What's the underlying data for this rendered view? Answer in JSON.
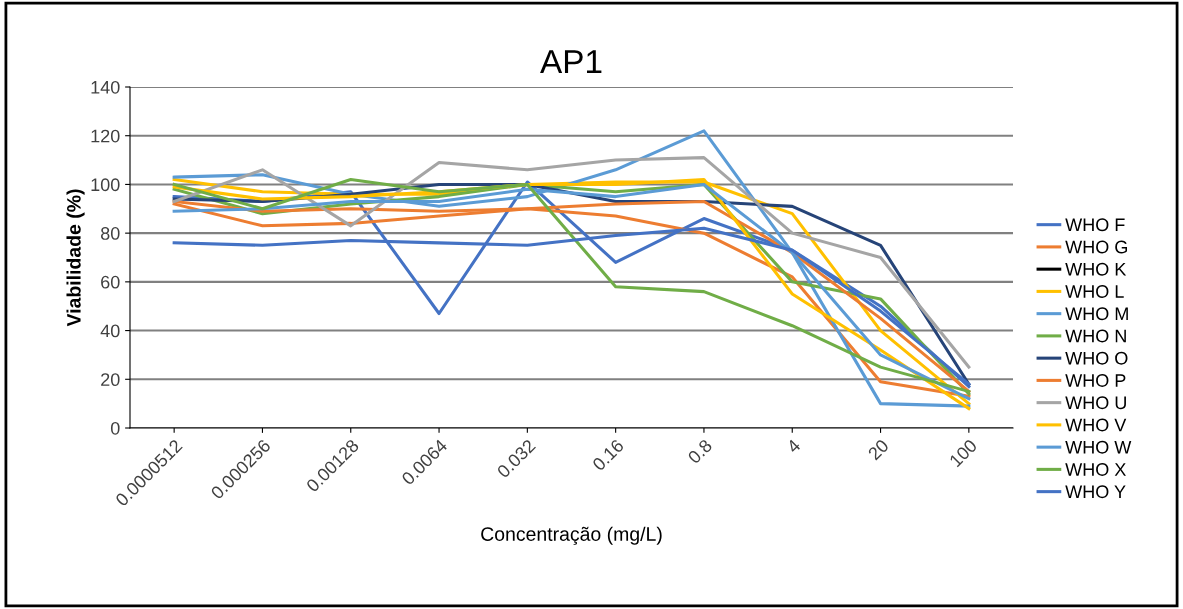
{
  "chart_data": {
    "type": "line",
    "title": "AP1",
    "xlabel": "Concentração (mg/L)",
    "ylabel": "Viabilidade (%)",
    "categories": [
      "0.0000512",
      "0.000256",
      "0.00128",
      "0.0064",
      "0.032",
      "0.16",
      "0.8",
      "4",
      "20",
      "100"
    ],
    "ylim": [
      0,
      140
    ],
    "yticks": [
      0,
      20,
      40,
      60,
      80,
      100,
      120,
      140
    ],
    "grid": "y",
    "legend": "right",
    "marker": "none",
    "line_style": "solid",
    "series": [
      {
        "name": "WHO F",
        "color": "#4472c4",
        "values": [
          95,
          93,
          97,
          47,
          101,
          68,
          86,
          73,
          50,
          17
        ]
      },
      {
        "name": "WHO G",
        "color": "#ed7d31",
        "values": [
          92,
          83,
          84,
          87,
          90,
          87,
          80,
          62,
          19,
          13
        ]
      },
      {
        "name": "WHO K",
        "color": "#000000",
        "values": [
          null,
          null,
          null,
          null,
          null,
          null,
          null,
          null,
          null,
          null
        ]
      },
      {
        "name": "WHO L",
        "color": "#ffc000",
        "values": [
          102,
          97,
          96,
          96,
          100,
          101,
          101,
          88,
          40,
          10
        ]
      },
      {
        "name": "WHO M",
        "color": "#5b9bd5",
        "values": [
          103,
          104,
          96,
          91,
          95,
          106,
          122,
          72,
          10,
          9
        ]
      },
      {
        "name": "WHO N",
        "color": "#70ad47",
        "values": [
          98,
          88,
          92,
          95,
          100,
          97,
          100,
          60,
          53,
          14
        ]
      },
      {
        "name": "WHO O",
        "color": "#264478",
        "values": [
          94,
          93,
          96,
          100,
          100,
          93,
          93,
          91,
          75,
          18
        ]
      },
      {
        "name": "WHO P",
        "color": "#ed7d31",
        "values": [
          93,
          89,
          90,
          89,
          90,
          92,
          93,
          72,
          45,
          15
        ]
      },
      {
        "name": "WHO U",
        "color": "#a5a5a5",
        "values": [
          93,
          106,
          83,
          109,
          106,
          110,
          111,
          80,
          70,
          25
        ]
      },
      {
        "name": "WHO V",
        "color": "#ffc000",
        "values": [
          99,
          94,
          95,
          97,
          100,
          100,
          102,
          55,
          32,
          8
        ]
      },
      {
        "name": "WHO W",
        "color": "#5b9bd5",
        "values": [
          89,
          90,
          93,
          93,
          98,
          95,
          100,
          72,
          30,
          12
        ]
      },
      {
        "name": "WHO X",
        "color": "#70ad47",
        "values": [
          100,
          90,
          102,
          97,
          100,
          58,
          56,
          42,
          25,
          15
        ]
      },
      {
        "name": "WHO Y",
        "color": "#4472c4",
        "values": [
          76,
          75,
          77,
          76,
          75,
          79,
          82,
          73,
          48,
          18
        ]
      }
    ]
  }
}
